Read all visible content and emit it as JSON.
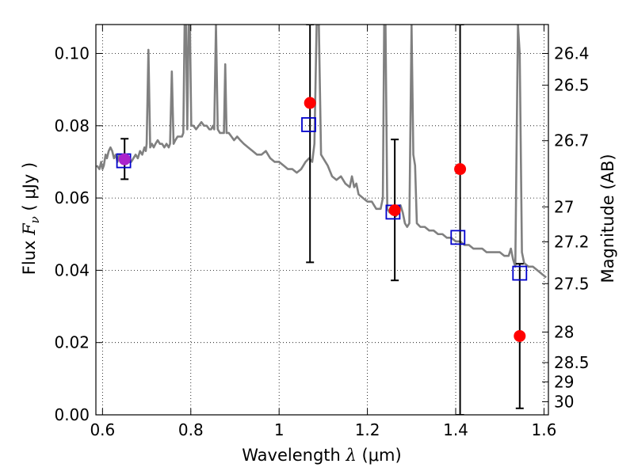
{
  "chart_data": {
    "type": "scatter",
    "title": "",
    "xlabel": {
      "prefix": "Wavelength  ",
      "symbol": "λ",
      "unit": " (μm)"
    },
    "ylabel": {
      "prefix": "Flux  ",
      "symbol": "F",
      "subscript": "ν",
      "unit": " ( μJy )"
    },
    "y2label": "Magnitude (AB)",
    "xlim": [
      0.585,
      1.61
    ],
    "ylim": [
      0.0,
      0.108
    ],
    "grid": true,
    "x_ticks": [
      {
        "value": 0.6,
        "label": "0.6"
      },
      {
        "value": 0.8,
        "label": "0.8"
      },
      {
        "value": 1.0,
        "label": "1"
      },
      {
        "value": 1.2,
        "label": "1.2"
      },
      {
        "value": 1.4,
        "label": "1.4"
      },
      {
        "value": 1.6,
        "label": "1.6"
      }
    ],
    "y_ticks": [
      {
        "value": 0.0,
        "label": "0.00"
      },
      {
        "value": 0.02,
        "label": "0.02"
      },
      {
        "value": 0.04,
        "label": "0.04"
      },
      {
        "value": 0.06,
        "label": "0.06"
      },
      {
        "value": 0.08,
        "label": "0.08"
      },
      {
        "value": 0.1,
        "label": "0.10"
      }
    ],
    "y2_ticks": [
      {
        "mag": 26.4,
        "label": "26.4"
      },
      {
        "mag": 26.5,
        "label": "26.5"
      },
      {
        "mag": 26.7,
        "label": "26.7"
      },
      {
        "mag": 27.0,
        "label": "27"
      },
      {
        "mag": 27.2,
        "label": "27.2"
      },
      {
        "mag": 27.5,
        "label": "27.5"
      },
      {
        "mag": 28.0,
        "label": "28"
      },
      {
        "mag": 28.5,
        "label": "28.5"
      },
      {
        "mag": 29.0,
        "label": "29"
      },
      {
        "mag": 30.0,
        "label": "30"
      }
    ],
    "model_spectrum": {
      "color": "#808080",
      "points": [
        [
          0.587,
          0.069
        ],
        [
          0.593,
          0.068
        ],
        [
          0.597,
          0.07
        ],
        [
          0.6,
          0.068
        ],
        [
          0.603,
          0.069
        ],
        [
          0.607,
          0.072
        ],
        [
          0.61,
          0.071
        ],
        [
          0.614,
          0.073
        ],
        [
          0.618,
          0.074
        ],
        [
          0.622,
          0.073
        ],
        [
          0.626,
          0.071
        ],
        [
          0.63,
          0.072
        ],
        [
          0.634,
          0.07
        ],
        [
          0.638,
          0.072
        ],
        [
          0.642,
          0.071
        ],
        [
          0.646,
          0.07
        ],
        [
          0.65,
          0.07
        ],
        [
          0.655,
          0.071
        ],
        [
          0.66,
          0.07
        ],
        [
          0.665,
          0.07
        ],
        [
          0.67,
          0.071
        ],
        [
          0.675,
          0.072
        ],
        [
          0.68,
          0.071
        ],
        [
          0.685,
          0.073
        ],
        [
          0.69,
          0.072
        ],
        [
          0.695,
          0.074
        ],
        [
          0.698,
          0.073
        ],
        [
          0.7,
          0.075
        ],
        [
          0.704,
          0.101
        ],
        [
          0.708,
          0.074
        ],
        [
          0.712,
          0.075
        ],
        [
          0.716,
          0.074
        ],
        [
          0.72,
          0.075
        ],
        [
          0.725,
          0.076
        ],
        [
          0.73,
          0.075
        ],
        [
          0.735,
          0.075
        ],
        [
          0.74,
          0.074
        ],
        [
          0.745,
          0.075
        ],
        [
          0.75,
          0.074
        ],
        [
          0.753,
          0.075
        ],
        [
          0.757,
          0.095
        ],
        [
          0.761,
          0.075
        ],
        [
          0.765,
          0.076
        ],
        [
          0.77,
          0.077
        ],
        [
          0.775,
          0.077
        ],
        [
          0.78,
          0.077
        ],
        [
          0.783,
          0.078
        ],
        [
          0.786,
          0.108
        ],
        [
          0.789,
          0.108
        ],
        [
          0.792,
          0.079
        ],
        [
          0.795,
          0.108
        ],
        [
          0.798,
          0.108
        ],
        [
          0.801,
          0.08
        ],
        [
          0.806,
          0.08
        ],
        [
          0.812,
          0.079
        ],
        [
          0.818,
          0.08
        ],
        [
          0.824,
          0.081
        ],
        [
          0.83,
          0.08
        ],
        [
          0.836,
          0.08
        ],
        [
          0.842,
          0.079
        ],
        [
          0.846,
          0.079
        ],
        [
          0.85,
          0.08
        ],
        [
          0.853,
          0.079
        ],
        [
          0.857,
          0.108
        ],
        [
          0.861,
          0.079
        ],
        [
          0.866,
          0.078
        ],
        [
          0.871,
          0.078
        ],
        [
          0.875,
          0.078
        ],
        [
          0.878,
          0.097
        ],
        [
          0.881,
          0.078
        ],
        [
          0.886,
          0.078
        ],
        [
          0.892,
          0.077
        ],
        [
          0.898,
          0.076
        ],
        [
          0.905,
          0.077
        ],
        [
          0.912,
          0.076
        ],
        [
          0.92,
          0.075
        ],
        [
          0.93,
          0.074
        ],
        [
          0.94,
          0.073
        ],
        [
          0.95,
          0.072
        ],
        [
          0.96,
          0.072
        ],
        [
          0.97,
          0.073
        ],
        [
          0.98,
          0.071
        ],
        [
          0.99,
          0.07
        ],
        [
          1.0,
          0.07
        ],
        [
          1.01,
          0.069
        ],
        [
          1.02,
          0.068
        ],
        [
          1.03,
          0.068
        ],
        [
          1.04,
          0.067
        ],
        [
          1.05,
          0.068
        ],
        [
          1.055,
          0.069
        ],
        [
          1.06,
          0.07
        ],
        [
          1.068,
          0.071
        ],
        [
          1.075,
          0.07
        ],
        [
          1.08,
          0.075
        ],
        [
          1.085,
          0.108
        ],
        [
          1.09,
          0.108
        ],
        [
          1.095,
          0.072
        ],
        [
          1.1,
          0.071
        ],
        [
          1.11,
          0.069
        ],
        [
          1.12,
          0.066
        ],
        [
          1.13,
          0.065
        ],
        [
          1.14,
          0.066
        ],
        [
          1.15,
          0.064
        ],
        [
          1.16,
          0.063
        ],
        [
          1.165,
          0.066
        ],
        [
          1.17,
          0.063
        ],
        [
          1.175,
          0.064
        ],
        [
          1.18,
          0.061
        ],
        [
          1.19,
          0.06
        ],
        [
          1.2,
          0.059
        ],
        [
          1.21,
          0.059
        ],
        [
          1.22,
          0.057
        ],
        [
          1.23,
          0.057
        ],
        [
          1.235,
          0.06
        ],
        [
          1.238,
          0.108
        ],
        [
          1.241,
          0.108
        ],
        [
          1.245,
          0.057
        ],
        [
          1.25,
          0.056
        ],
        [
          1.255,
          0.057
        ],
        [
          1.26,
          0.056
        ],
        [
          1.265,
          0.055
        ],
        [
          1.27,
          0.056
        ],
        [
          1.275,
          0.058
        ],
        [
          1.28,
          0.056
        ],
        [
          1.285,
          0.053
        ],
        [
          1.29,
          0.052
        ],
        [
          1.295,
          0.053
        ],
        [
          1.3,
          0.108
        ],
        [
          1.304,
          0.072
        ],
        [
          1.308,
          0.069
        ],
        [
          1.312,
          0.053
        ],
        [
          1.32,
          0.052
        ],
        [
          1.33,
          0.052
        ],
        [
          1.34,
          0.051
        ],
        [
          1.35,
          0.051
        ],
        [
          1.36,
          0.05
        ],
        [
          1.37,
          0.05
        ],
        [
          1.38,
          0.049
        ],
        [
          1.39,
          0.049
        ],
        [
          1.4,
          0.048
        ],
        [
          1.41,
          0.048
        ],
        [
          1.42,
          0.047
        ],
        [
          1.43,
          0.047
        ],
        [
          1.44,
          0.046
        ],
        [
          1.45,
          0.046
        ],
        [
          1.46,
          0.046
        ],
        [
          1.47,
          0.045
        ],
        [
          1.48,
          0.045
        ],
        [
          1.49,
          0.045
        ],
        [
          1.5,
          0.045
        ],
        [
          1.51,
          0.044
        ],
        [
          1.52,
          0.044
        ],
        [
          1.525,
          0.046
        ],
        [
          1.53,
          0.043
        ],
        [
          1.535,
          0.041
        ],
        [
          1.538,
          0.075
        ],
        [
          1.541,
          0.108
        ],
        [
          1.545,
          0.1
        ],
        [
          1.55,
          0.045
        ],
        [
          1.555,
          0.042
        ],
        [
          1.565,
          0.041
        ],
        [
          1.575,
          0.041
        ],
        [
          1.585,
          0.04
        ],
        [
          1.595,
          0.039
        ],
        [
          1.605,
          0.038
        ]
      ]
    },
    "squares": {
      "color": "#0000cc",
      "points": [
        {
          "x": 0.648,
          "y": 0.0703
        },
        {
          "x": 1.067,
          "y": 0.0803
        },
        {
          "x": 1.258,
          "y": 0.0561
        },
        {
          "x": 1.405,
          "y": 0.0491
        },
        {
          "x": 1.545,
          "y": 0.0392
        }
      ]
    },
    "circles": {
      "color": "#ff0000",
      "points": [
        {
          "x": 0.65,
          "y": 0.0707,
          "color": "#aa22cc"
        },
        {
          "x": 1.07,
          "y": 0.0863
        },
        {
          "x": 1.262,
          "y": 0.0566
        },
        {
          "x": 1.41,
          "y": 0.068
        },
        {
          "x": 1.545,
          "y": 0.0218
        }
      ]
    },
    "errorbars": {
      "color": "#000000",
      "items": [
        {
          "x": 0.65,
          "low": 0.0652,
          "high": 0.0764
        },
        {
          "x": 1.07,
          "low": 0.0422,
          "high": 0.108
        },
        {
          "x": 1.262,
          "low": 0.0372,
          "high": 0.0762
        },
        {
          "x": 1.41,
          "low": 0.0,
          "high": 0.108
        },
        {
          "x": 1.545,
          "low": 0.0018,
          "high": 0.0418
        }
      ]
    }
  }
}
